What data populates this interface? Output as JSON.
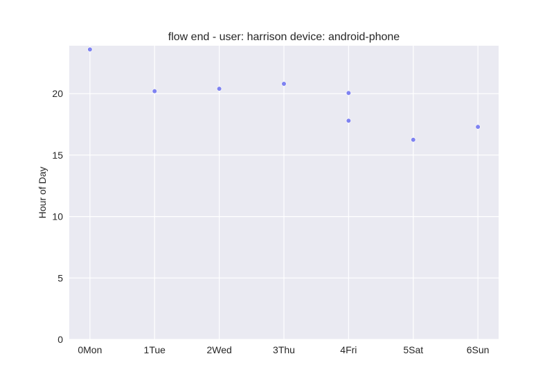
{
  "chart_data": {
    "type": "scatter",
    "title": "flow end - user: harrison device: android-phone",
    "xlabel": "",
    "ylabel": "Hour of Day",
    "categories": [
      "0Mon",
      "1Tue",
      "2Wed",
      "3Thu",
      "4Fri",
      "5Sat",
      "6Sun"
    ],
    "y_ticks": [
      "0",
      "5",
      "10",
      "15",
      "20"
    ],
    "xlim": [
      -0.32,
      6.32
    ],
    "ylim": [
      0,
      23.9
    ],
    "grid": true,
    "point_color": "#6a6ff0",
    "background_color": "#eaeaf2",
    "points": [
      {
        "x": 0,
        "y": 23.6
      },
      {
        "x": 1,
        "y": 20.2
      },
      {
        "x": 2,
        "y": 20.4
      },
      {
        "x": 3,
        "y": 20.8
      },
      {
        "x": 4,
        "y": 20.05
      },
      {
        "x": 4,
        "y": 17.8
      },
      {
        "x": 5,
        "y": 16.25
      },
      {
        "x": 6,
        "y": 17.3
      }
    ]
  }
}
